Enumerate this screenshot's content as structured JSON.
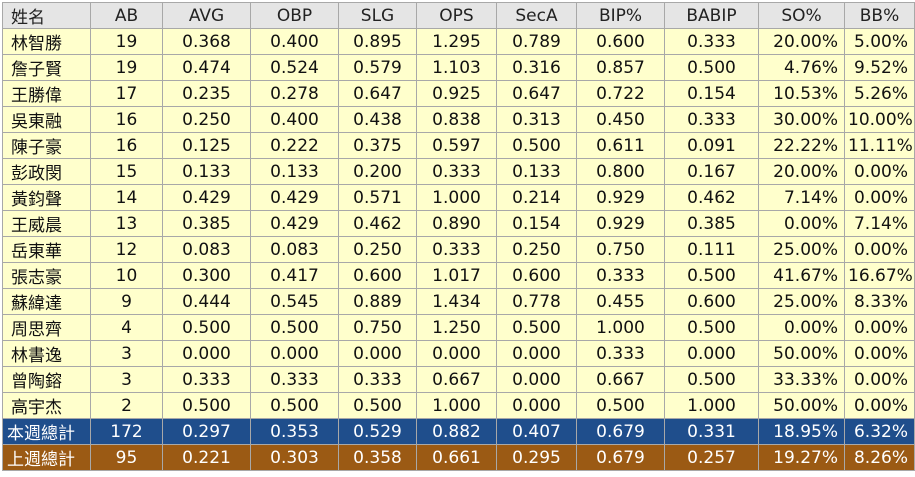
{
  "columns": [
    "姓名",
    "AB",
    "AVG",
    "OBP",
    "SLG",
    "OPS",
    "SecA",
    "BIP%",
    "BABIP",
    "SO%",
    "BB%"
  ],
  "rows": [
    [
      "林智勝",
      "19",
      "0.368",
      "0.400",
      "0.895",
      "1.295",
      "0.789",
      "0.600",
      "0.333",
      "20.00%",
      "5.00%"
    ],
    [
      "詹子賢",
      "19",
      "0.474",
      "0.524",
      "0.579",
      "1.103",
      "0.316",
      "0.857",
      "0.500",
      "4.76%",
      "9.52%"
    ],
    [
      "王勝偉",
      "17",
      "0.235",
      "0.278",
      "0.647",
      "0.925",
      "0.647",
      "0.722",
      "0.154",
      "10.53%",
      "5.26%"
    ],
    [
      "吳東融",
      "16",
      "0.250",
      "0.400",
      "0.438",
      "0.838",
      "0.313",
      "0.450",
      "0.333",
      "30.00%",
      "10.00%"
    ],
    [
      "陳子豪",
      "16",
      "0.125",
      "0.222",
      "0.375",
      "0.597",
      "0.500",
      "0.611",
      "0.091",
      "22.22%",
      "11.11%"
    ],
    [
      "彭政閔",
      "15",
      "0.133",
      "0.133",
      "0.200",
      "0.333",
      "0.133",
      "0.800",
      "0.167",
      "20.00%",
      "0.00%"
    ],
    [
      "黃鈞聲",
      "14",
      "0.429",
      "0.429",
      "0.571",
      "1.000",
      "0.214",
      "0.929",
      "0.462",
      "7.14%",
      "0.00%"
    ],
    [
      "王威晨",
      "13",
      "0.385",
      "0.429",
      "0.462",
      "0.890",
      "0.154",
      "0.929",
      "0.385",
      "0.00%",
      "7.14%"
    ],
    [
      "岳東華",
      "12",
      "0.083",
      "0.083",
      "0.250",
      "0.333",
      "0.250",
      "0.750",
      "0.111",
      "25.00%",
      "0.00%"
    ],
    [
      "張志豪",
      "10",
      "0.300",
      "0.417",
      "0.600",
      "1.017",
      "0.600",
      "0.333",
      "0.500",
      "41.67%",
      "16.67%"
    ],
    [
      "蘇緯達",
      "9",
      "0.444",
      "0.545",
      "0.889",
      "1.434",
      "0.778",
      "0.455",
      "0.600",
      "25.00%",
      "8.33%"
    ],
    [
      "周思齊",
      "4",
      "0.500",
      "0.500",
      "0.750",
      "1.250",
      "0.500",
      "1.000",
      "0.500",
      "0.00%",
      "0.00%"
    ],
    [
      "林書逸",
      "3",
      "0.000",
      "0.000",
      "0.000",
      "0.000",
      "0.000",
      "0.333",
      "0.000",
      "50.00%",
      "0.00%"
    ],
    [
      "曾陶鎔",
      "3",
      "0.333",
      "0.333",
      "0.333",
      "0.667",
      "0.000",
      "0.667",
      "0.500",
      "33.33%",
      "0.00%"
    ],
    [
      "高宇杰",
      "2",
      "0.500",
      "0.500",
      "0.500",
      "1.000",
      "0.000",
      "0.500",
      "1.000",
      "50.00%",
      "0.00%"
    ]
  ],
  "totals": [
    {
      "kind": "this-week",
      "color": "#1f4e8c",
      "values": [
        "本週總計",
        "172",
        "0.297",
        "0.353",
        "0.529",
        "0.882",
        "0.407",
        "0.679",
        "0.331",
        "18.95%",
        "6.32%"
      ]
    },
    {
      "kind": "last-week",
      "color": "#9b5a14",
      "values": [
        "上週總計",
        "95",
        "0.221",
        "0.303",
        "0.358",
        "0.661",
        "0.295",
        "0.679",
        "0.257",
        "19.27%",
        "8.26%"
      ]
    }
  ],
  "colors": {
    "header_bg": "#e5e5e5",
    "row_bg": "#ffffcc",
    "border": "#a8a8a8"
  }
}
